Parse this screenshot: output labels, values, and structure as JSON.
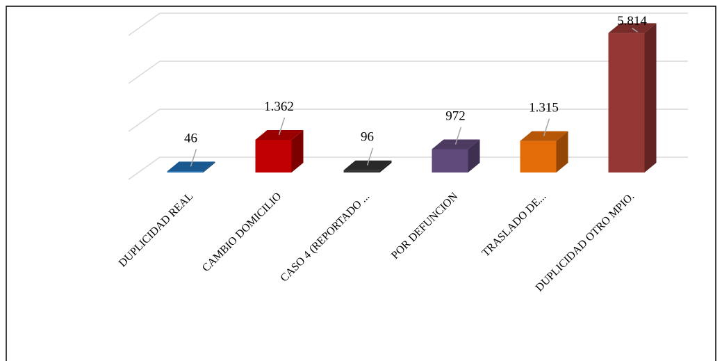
{
  "chart_data": {
    "type": "bar3d",
    "categories": [
      "DUPLICIDAD REAL",
      "CAMBIO DOMICILIO",
      "CASO 4 (REPORTADO ...",
      "POR DEFUNCION",
      "TRASLADO DE...",
      "DUPLICIDAD OTRO MPIO."
    ],
    "values": [
      46,
      1362,
      96,
      972,
      1315,
      5814
    ],
    "value_labels": [
      "46",
      "1.362",
      "96",
      "972",
      "1.315",
      "5.814"
    ],
    "colors": [
      "#1f6fb4",
      "#c00000",
      "#333333",
      "#604a7b",
      "#e36c09",
      "#953735"
    ],
    "ylim": [
      0,
      6000
    ],
    "yticks": [
      0,
      2000,
      4000,
      6000
    ],
    "grid": true
  }
}
